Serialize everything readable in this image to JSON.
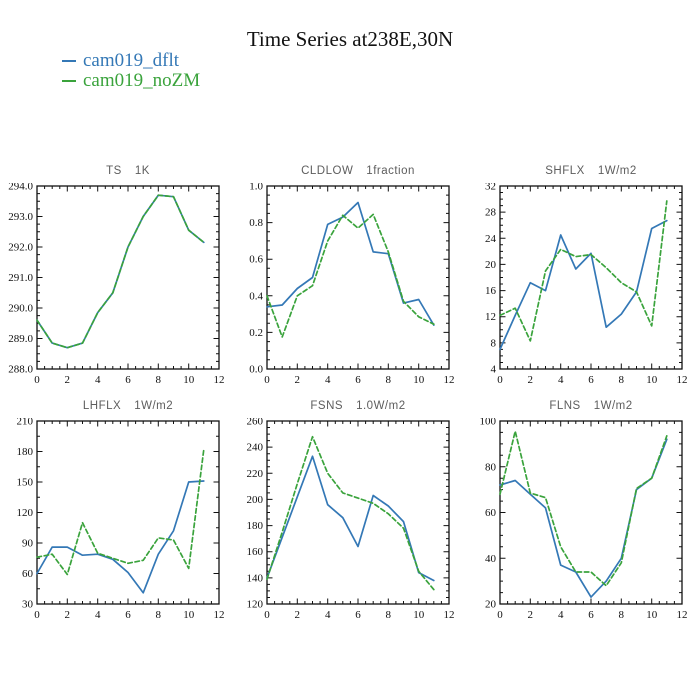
{
  "page": {
    "title": "Time Series at238E,30N"
  },
  "legend": {
    "items": [
      {
        "label": "cam019_dflt",
        "color": "#3478b6",
        "style": "solid"
      },
      {
        "label": "cam019_noZM",
        "color": "#3aa33c",
        "style": "dashed"
      }
    ]
  },
  "chart_data": [
    {
      "type": "line",
      "name": "TS",
      "units": "1K",
      "x": [
        0,
        1,
        2,
        3,
        4,
        5,
        6,
        7,
        8,
        9,
        10,
        11
      ],
      "xlim": [
        0,
        12
      ],
      "ylim": [
        288.0,
        294.0
      ],
      "xticks": [
        0,
        2,
        4,
        6,
        8,
        10,
        12
      ],
      "xtick_labels": [
        "0",
        "2",
        "4",
        "6",
        "8",
        "10",
        "12"
      ],
      "x_minor_step": 0.5,
      "yticks": [
        288,
        289,
        290,
        291,
        292,
        293,
        294
      ],
      "ytick_labels": [
        "288.0",
        "289.0",
        "290.0",
        "291.0",
        "292.0",
        "293.0",
        "294.0"
      ],
      "y_minor_step": 0.25,
      "series": [
        {
          "name": "cam019_dflt",
          "values": [
            289.6,
            288.85,
            288.7,
            288.85,
            289.85,
            290.5,
            292.0,
            293.0,
            293.7,
            293.65,
            292.55,
            292.15
          ]
        },
        {
          "name": "cam019_noZM",
          "values": [
            289.6,
            288.85,
            288.7,
            288.85,
            289.85,
            290.5,
            292.0,
            293.0,
            293.7,
            293.65,
            292.55,
            292.15
          ]
        }
      ]
    },
    {
      "type": "line",
      "name": "CLDLOW",
      "units": "1fraction",
      "x": [
        0,
        1,
        2,
        3,
        4,
        5,
        6,
        7,
        8,
        9,
        10,
        11
      ],
      "xlim": [
        0,
        12
      ],
      "ylim": [
        0.0,
        1.0
      ],
      "xticks": [
        0,
        2,
        4,
        6,
        8,
        10,
        12
      ],
      "xtick_labels": [
        "0",
        "2",
        "4",
        "6",
        "8",
        "10",
        "12"
      ],
      "x_minor_step": 0.5,
      "yticks": [
        0.0,
        0.2,
        0.4,
        0.6,
        0.8,
        1.0
      ],
      "ytick_labels": [
        "0.0",
        "0.2",
        "0.4",
        "0.6",
        "0.8",
        "1.0"
      ],
      "y_minor_step": 0.05,
      "series": [
        {
          "name": "cam019_dflt",
          "values": [
            0.34,
            0.35,
            0.44,
            0.5,
            0.79,
            0.83,
            0.91,
            0.64,
            0.63,
            0.36,
            0.38,
            0.24
          ]
        },
        {
          "name": "cam019_noZM",
          "values": [
            0.4,
            0.175,
            0.4,
            0.455,
            0.7,
            0.84,
            0.77,
            0.845,
            0.64,
            0.37,
            0.285,
            0.245
          ]
        }
      ]
    },
    {
      "type": "line",
      "name": "SHFLX",
      "units": "1W/m2",
      "x": [
        0,
        1,
        2,
        3,
        4,
        5,
        6,
        7,
        8,
        9,
        10,
        11
      ],
      "xlim": [
        0,
        12
      ],
      "ylim": [
        4,
        32
      ],
      "xticks": [
        0,
        2,
        4,
        6,
        8,
        10,
        12
      ],
      "xtick_labels": [
        "0",
        "2",
        "4",
        "6",
        "8",
        "10",
        "12"
      ],
      "x_minor_step": 0.5,
      "yticks": [
        4,
        8,
        12,
        16,
        20,
        24,
        28,
        32
      ],
      "ytick_labels": [
        "4",
        "8",
        "12",
        "16",
        "20",
        "24",
        "28",
        "32"
      ],
      "y_minor_step": 1,
      "series": [
        {
          "name": "cam019_dflt",
          "values": [
            7.0,
            12.2,
            17.2,
            16.0,
            24.5,
            19.3,
            21.7,
            10.4,
            12.4,
            15.8,
            25.5,
            26.7
          ]
        },
        {
          "name": "cam019_noZM",
          "values": [
            12.2,
            13.3,
            8.3,
            19.0,
            22.3,
            21.2,
            21.5,
            19.5,
            17.2,
            15.8,
            10.6,
            29.7
          ]
        }
      ]
    },
    {
      "type": "line",
      "name": "LHFLX",
      "units": "1W/m2",
      "x": [
        0,
        1,
        2,
        3,
        4,
        5,
        6,
        7,
        8,
        9,
        10,
        11
      ],
      "xlim": [
        0,
        12
      ],
      "ylim": [
        30,
        210
      ],
      "xticks": [
        0,
        2,
        4,
        6,
        8,
        10,
        12
      ],
      "xtick_labels": [
        "0",
        "2",
        "4",
        "6",
        "8",
        "10",
        "12"
      ],
      "x_minor_step": 0.5,
      "yticks": [
        30,
        60,
        90,
        120,
        150,
        180,
        210
      ],
      "ytick_labels": [
        "30",
        "60",
        "90",
        "120",
        "150",
        "180",
        "210"
      ],
      "y_minor_step": 15,
      "series": [
        {
          "name": "cam019_dflt",
          "values": [
            60,
            86,
            86,
            78,
            79,
            74,
            61,
            41,
            79,
            102,
            150,
            151
          ]
        },
        {
          "name": "cam019_noZM",
          "values": [
            76,
            79,
            59,
            110,
            80,
            75,
            70,
            73,
            95,
            93,
            65,
            182
          ]
        }
      ]
    },
    {
      "type": "line",
      "name": "FSNS",
      "units": "1.0W/m2",
      "x": [
        0,
        1,
        2,
        3,
        4,
        5,
        6,
        7,
        8,
        9,
        10,
        11
      ],
      "xlim": [
        0,
        12
      ],
      "ylim": [
        120,
        260
      ],
      "xticks": [
        0,
        2,
        4,
        6,
        8,
        10,
        12
      ],
      "xtick_labels": [
        "0",
        "2",
        "4",
        "6",
        "8",
        "10",
        "12"
      ],
      "x_minor_step": 0.5,
      "yticks": [
        120,
        140,
        160,
        180,
        200,
        220,
        240,
        260
      ],
      "ytick_labels": [
        "120",
        "140",
        "160",
        "180",
        "200",
        "220",
        "240",
        "260"
      ],
      "y_minor_step": 5,
      "series": [
        {
          "name": "cam019_dflt",
          "values": [
            140,
            171,
            202,
            233,
            196,
            186,
            164,
            203,
            195,
            183,
            144,
            138
          ]
        },
        {
          "name": "cam019_noZM",
          "values": [
            139,
            175,
            212,
            248,
            220,
            205,
            201,
            197,
            189,
            178,
            145,
            131
          ]
        }
      ]
    },
    {
      "type": "line",
      "name": "FLNS",
      "units": "1W/m2",
      "x": [
        0,
        1,
        2,
        3,
        4,
        5,
        6,
        7,
        8,
        9,
        10,
        11
      ],
      "xlim": [
        0,
        12
      ],
      "ylim": [
        20,
        100
      ],
      "xticks": [
        0,
        2,
        4,
        6,
        8,
        10,
        12
      ],
      "xtick_labels": [
        "0",
        "2",
        "4",
        "6",
        "8",
        "10",
        "12"
      ],
      "x_minor_step": 0.5,
      "yticks": [
        20,
        40,
        60,
        80,
        100
      ],
      "ytick_labels": [
        "20",
        "40",
        "60",
        "80",
        "100"
      ],
      "y_minor_step": 5,
      "series": [
        {
          "name": "cam019_dflt",
          "values": [
            72,
            74,
            68,
            62,
            37,
            34,
            23,
            30,
            40,
            70,
            75,
            92
          ]
        },
        {
          "name": "cam019_noZM",
          "values": [
            68,
            95.5,
            68.5,
            66.5,
            45,
            34,
            34,
            28,
            38,
            70.5,
            75,
            93.5
          ]
        }
      ]
    }
  ]
}
